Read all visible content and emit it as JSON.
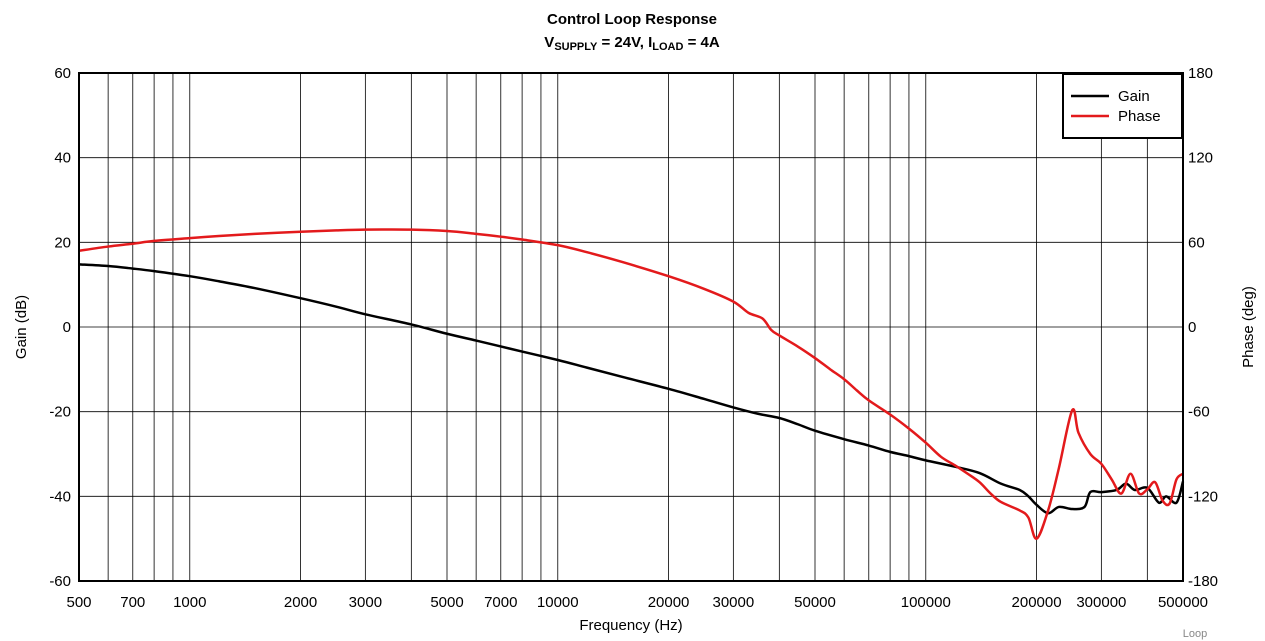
{
  "chart_data": {
    "type": "line",
    "title": "Control Loop Response",
    "subtitle": {
      "v_main": "V",
      "v_sub": "SUPPLY",
      "v_rest": " = 24V, ",
      "i_main": "I",
      "i_sub": "LOAD",
      "i_rest": " = 4A"
    },
    "xlabel": "Frequency (Hz)",
    "ylabel": "Gain (dB)",
    "y2label": "Phase (deg)",
    "x_scale": "log",
    "xlim": [
      500,
      500000
    ],
    "ylim": [
      -60,
      60
    ],
    "y2lim": [
      -180,
      180
    ],
    "grid": true,
    "legend_position": "top-right",
    "x_ticks": [
      "500",
      "700",
      "1000",
      "2000",
      "3000",
      "5000",
      "7000",
      "10000",
      "20000",
      "30000",
      "50000",
      "100000",
      "200000",
      "300000",
      "500000"
    ],
    "y_ticks": [
      "60",
      "40",
      "20",
      "0",
      "-20",
      "-40",
      "-60"
    ],
    "y2_ticks": [
      "180",
      "120",
      "60",
      "0",
      "-60",
      "-120",
      "-180"
    ],
    "series": [
      {
        "name": "Gain",
        "color": "#000000",
        "axis": "left",
        "x": [
          500,
          600,
          700,
          800,
          1000,
          1200,
          1500,
          2000,
          2500,
          3000,
          4000,
          5000,
          6000,
          7000,
          8000,
          10000,
          12000,
          15000,
          20000,
          25000,
          30000,
          35000,
          40000,
          45000,
          50000,
          60000,
          70000,
          80000,
          90000,
          100000,
          120000,
          140000,
          160000,
          180000,
          190000,
          200000,
          215000,
          230000,
          250000,
          270000,
          280000,
          300000,
          330000,
          350000,
          370000,
          400000,
          430000,
          450000,
          480000,
          500000
        ],
        "values": [
          14.8,
          14.4,
          13.8,
          13.2,
          12.0,
          10.8,
          9.2,
          6.8,
          4.8,
          3.0,
          0.6,
          -1.6,
          -3.2,
          -4.6,
          -5.8,
          -7.8,
          -9.6,
          -11.8,
          -14.6,
          -17.0,
          -19.0,
          -20.5,
          -21.5,
          -23.0,
          -24.5,
          -26.5,
          -28.0,
          -29.5,
          -30.5,
          -31.5,
          -33.0,
          -34.5,
          -37.0,
          -38.5,
          -40.0,
          -42.0,
          -44.0,
          -42.5,
          -43.0,
          -42.5,
          -39.0,
          -39.0,
          -38.5,
          -37.0,
          -38.5,
          -38.0,
          -41.5,
          -40.0,
          -41.5,
          -36.5
        ]
      },
      {
        "name": "Phase",
        "color": "#e31a1c",
        "axis": "right",
        "x": [
          500,
          600,
          700,
          800,
          1000,
          1200,
          1500,
          2000,
          2500,
          3000,
          4000,
          5000,
          6000,
          7000,
          8000,
          10000,
          12000,
          15000,
          20000,
          25000,
          30000,
          33000,
          36000,
          38000,
          40000,
          45000,
          50000,
          55000,
          60000,
          65000,
          70000,
          80000,
          90000,
          100000,
          110000,
          120000,
          130000,
          140000,
          150000,
          160000,
          180000,
          190000,
          200000,
          215000,
          230000,
          250000,
          260000,
          280000,
          300000,
          320000,
          340000,
          360000,
          380000,
          400000,
          420000,
          440000,
          460000,
          480000,
          500000
        ],
        "values": [
          54,
          57,
          59,
          61,
          63,
          64.5,
          66,
          67.5,
          68.5,
          69,
          69,
          68,
          66,
          64,
          62,
          58,
          53,
          46,
          36,
          27,
          18,
          10,
          6,
          -2,
          -6,
          -14,
          -22,
          -30,
          -37,
          -45,
          -52,
          -62,
          -72,
          -82,
          -92,
          -98,
          -104,
          -110,
          -118,
          -124,
          -130,
          -135,
          -150,
          -130,
          -100,
          -59,
          -75,
          -90,
          -97,
          -108,
          -118,
          -104,
          -118,
          -115,
          -110,
          -123,
          -125,
          -108,
          -104
        ]
      }
    ]
  },
  "watermark": "Loop"
}
